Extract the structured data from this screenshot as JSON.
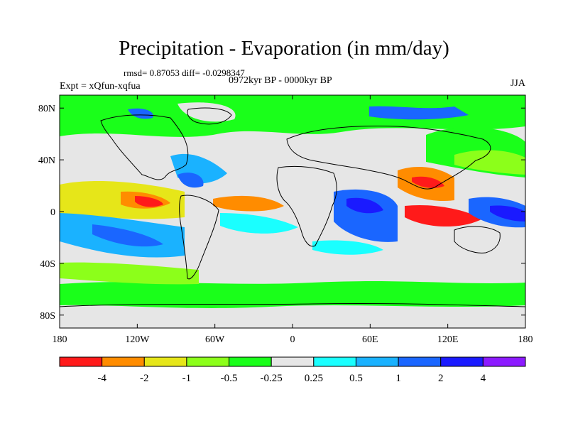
{
  "title": "Precipitation - Evaporation (in mm/day)",
  "stats": "rmsd= 0.87053 diff= -0.0298347",
  "period": "0972kyr BP - 0000kyr BP",
  "experiment": "Expt = xQfun-xqfua",
  "season": "JJA",
  "map": {
    "projection": "cylindrical equidistant",
    "lon_range": [
      -180,
      180
    ],
    "lat_range": [
      -90,
      90
    ],
    "land_outline_color": "#000000",
    "lat_ticks": [
      "80N",
      "40N",
      "0",
      "40S",
      "80S"
    ],
    "lat_tick_values": [
      80,
      40,
      0,
      -40,
      -80
    ],
    "lon_ticks": [
      "180",
      "120W",
      "60W",
      "0",
      "60E",
      "120E",
      "180"
    ],
    "lon_tick_values": [
      -180,
      -120,
      -60,
      0,
      60,
      120,
      180
    ]
  },
  "colorbar": {
    "colors": [
      "#ff1a1a",
      "#ff8c00",
      "#e6e619",
      "#8cff1a",
      "#1aff1a",
      "#e6e6e6",
      "#1affff",
      "#1ab2ff",
      "#1a66ff",
      "#1a1aff",
      "#8c1aff"
    ],
    "labels": [
      "-4",
      "-2",
      "-1",
      "-0.5",
      "-0.25",
      "0.25",
      "0.5",
      "1",
      "2",
      "4"
    ]
  }
}
